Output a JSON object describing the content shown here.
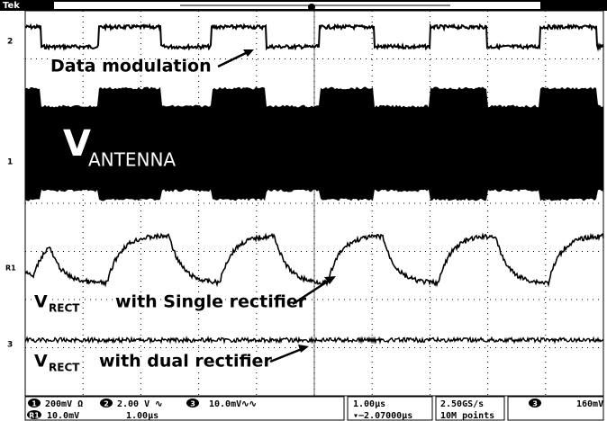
{
  "header": {
    "brand": "Tek"
  },
  "markers": [
    "2",
    "1",
    "R1",
    "3"
  ],
  "annotations": {
    "data_modulation": "Data modulation",
    "v_antenna": {
      "v": "V",
      "sub": "ANTENNA"
    },
    "v_rect_single": {
      "v": "V",
      "sub": "RECT",
      "text": "with Single rectifier"
    },
    "v_rect_dual": {
      "v": "V",
      "sub": "RECT",
      "text": "with dual rectifier"
    }
  },
  "status": {
    "ch1": {
      "badge": "1",
      "scale": "200mV Ω"
    },
    "ch2": {
      "badge": "2",
      "scale": "2.00 V ∿"
    },
    "ch3": {
      "badge": "3",
      "scale": "10.0mV∿∿"
    },
    "ref": {
      "badge": "R1",
      "scale": "10.0mV",
      "time": "1.00µs"
    },
    "timebase": "1.00µs",
    "trigger_pos": "▾−2.07000µs",
    "sample_rate": "2.50GS/s",
    "record": "10M points",
    "trigger": {
      "badge": "3",
      "level": "160mV"
    }
  }
}
